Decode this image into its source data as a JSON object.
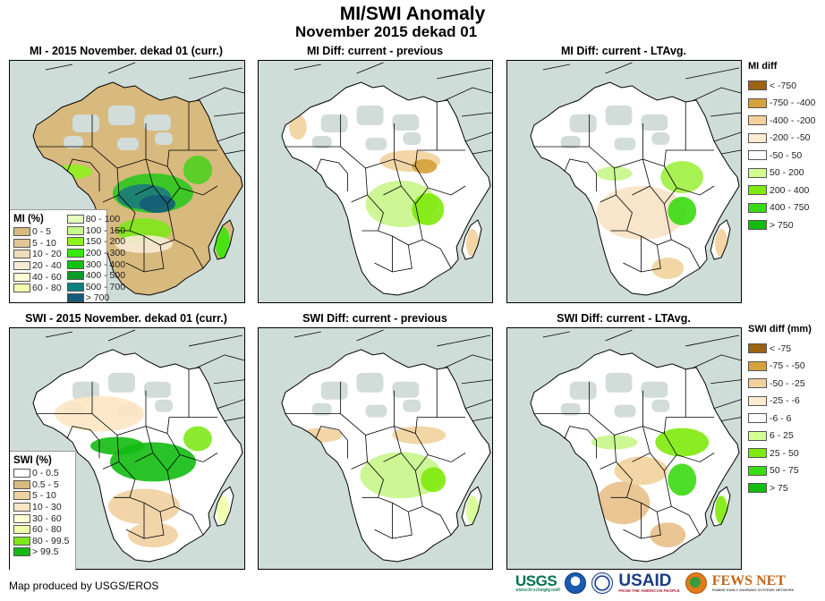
{
  "header": {
    "title": "MI/SWI Anomaly",
    "subtitle": "November 2015 dekad 01"
  },
  "panels": [
    {
      "id": "mi-current",
      "title": "MI - 2015 November. dekad 01 (curr.)",
      "style": "mi"
    },
    {
      "id": "mi-diff-previous",
      "title": "MI Diff: current - previous",
      "style": "midiff-prev"
    },
    {
      "id": "mi-diff-ltavg",
      "title": "MI Diff: current - LTAvg.",
      "style": "midiff-lt"
    },
    {
      "id": "swi-current",
      "title": "SWI - 2015 November. dekad 01 (curr.)",
      "style": "swi"
    },
    {
      "id": "swi-diff-previous",
      "title": "SWI Diff: current - previous",
      "style": "swidiff-prev"
    },
    {
      "id": "swi-diff-ltavg",
      "title": "SWI Diff: current - LTAvg.",
      "style": "swidiff-lt"
    }
  ],
  "legends": {
    "mi": {
      "title": "MI (%)",
      "items": [
        {
          "label": "0 - 5",
          "color": "#d8b97e"
        },
        {
          "label": "5 - 10",
          "color": "#e2c795"
        },
        {
          "label": "10 - 20",
          "color": "#efdcb8"
        },
        {
          "label": "20 - 40",
          "color": "#f7ead4"
        },
        {
          "label": "40 - 60",
          "color": "#ffffd8"
        },
        {
          "label": "60 - 80",
          "color": "#f3ffb0"
        },
        {
          "label": "80 - 100",
          "color": "#e6ffbe"
        },
        {
          "label": "100 - 150",
          "color": "#c8ff8c"
        },
        {
          "label": "150 - 200",
          "color": "#8ef21e"
        },
        {
          "label": "200 - 300",
          "color": "#3ae80a"
        },
        {
          "label": "300 - 400",
          "color": "#12c212"
        },
        {
          "label": "400 - 500",
          "color": "#0a9a2a"
        },
        {
          "label": "500 - 700",
          "color": "#0a8080"
        },
        {
          "label": "> 700",
          "color": "#155b7a"
        }
      ]
    },
    "swi": {
      "title": "SWI (%)",
      "items": [
        {
          "label": "0 - 0.5",
          "color": "#ffffff"
        },
        {
          "label": "0.5 - 5",
          "color": "#d8b97e"
        },
        {
          "label": "5 - 10",
          "color": "#efd0a0"
        },
        {
          "label": "10 - 30",
          "color": "#fde6c4"
        },
        {
          "label": "30 - 60",
          "color": "#ffffd6"
        },
        {
          "label": "60 - 80",
          "color": "#eeffa8"
        },
        {
          "label": "80 - 99.5",
          "color": "#7ee81a"
        },
        {
          "label": "> 99.5",
          "color": "#11bb11"
        }
      ]
    },
    "mi_diff": {
      "title": "MI diff",
      "items": [
        {
          "label": "< -750",
          "color": "#9a6410"
        },
        {
          "label": "-750 - -400",
          "color": "#d4a23c"
        },
        {
          "label": "-400 - -200",
          "color": "#f1d19c"
        },
        {
          "label": "-200 - -50",
          "color": "#fdebd2"
        },
        {
          "label": "-50 - 50",
          "color": "#ffffff"
        },
        {
          "label": "50 - 200",
          "color": "#d4ff90"
        },
        {
          "label": "200 - 400",
          "color": "#80ea0c"
        },
        {
          "label": "400 - 750",
          "color": "#3ada12"
        },
        {
          "label": "> 750",
          "color": "#12bb12"
        }
      ]
    },
    "swi_diff": {
      "title": "SWI diff (mm)",
      "items": [
        {
          "label": "< -75",
          "color": "#9a6410"
        },
        {
          "label": "-75 - -50",
          "color": "#d4a23c"
        },
        {
          "label": "-50 - -25",
          "color": "#f1d19c"
        },
        {
          "label": "-25 - -6",
          "color": "#fdebd2"
        },
        {
          "label": "-6 - 6",
          "color": "#ffffff"
        },
        {
          "label": "6 - 25",
          "color": "#d4ff90"
        },
        {
          "label": "25 - 50",
          "color": "#80ea0c"
        },
        {
          "label": "50 - 75",
          "color": "#3ada12"
        },
        {
          "label": "> 75",
          "color": "#12bb12"
        }
      ]
    }
  },
  "footer": {
    "credit": "Map produced by USGS/EROS",
    "logos": {
      "usgs": "USGS",
      "usgs_tagline": "science for a changing world",
      "usaid": "USAID",
      "usaid_tagline": "FROM THE AMERICAN PEOPLE",
      "fews": "FEWS NET",
      "fews_tagline": "FAMINE EARLY WARNING SYSTEMS NETWORK"
    }
  }
}
